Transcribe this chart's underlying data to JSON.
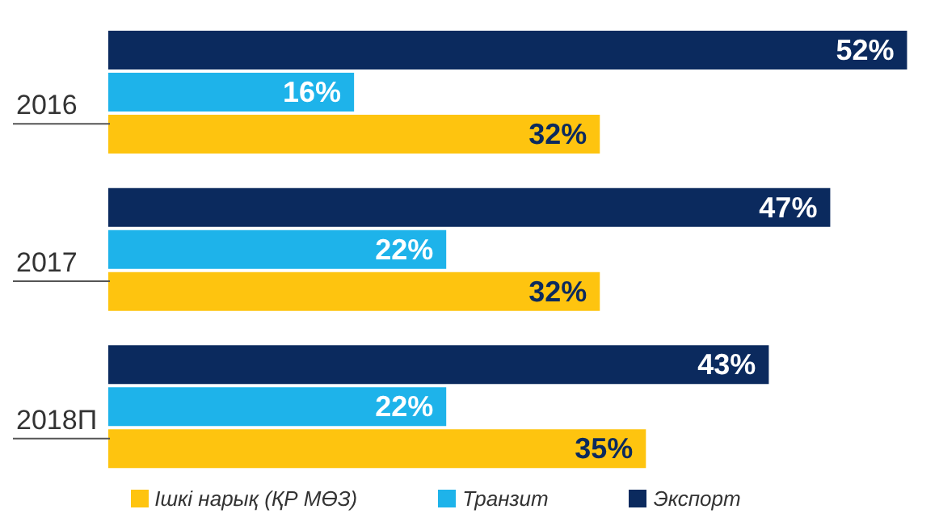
{
  "chart_data": {
    "type": "bar",
    "orientation": "horizontal",
    "categories": [
      "2016",
      "2017",
      "2018П"
    ],
    "series": [
      {
        "name": "Экспорт",
        "color": "#0b2a5e",
        "values": [
          52,
          47,
          43
        ],
        "value_labels": [
          "52%",
          "47%",
          "43%"
        ]
      },
      {
        "name": "Транзит",
        "color": "#1eb3ea",
        "values": [
          16,
          22,
          22
        ],
        "value_labels": [
          "16%",
          "22%",
          "22%"
        ]
      },
      {
        "name": "Ішкі нарық (ҚР МӨЗ)",
        "color": "#fec40f",
        "values": [
          32,
          32,
          35
        ],
        "value_labels": [
          "32%",
          "32%",
          "35%"
        ]
      }
    ],
    "legend": "bottom",
    "grid": false
  }
}
